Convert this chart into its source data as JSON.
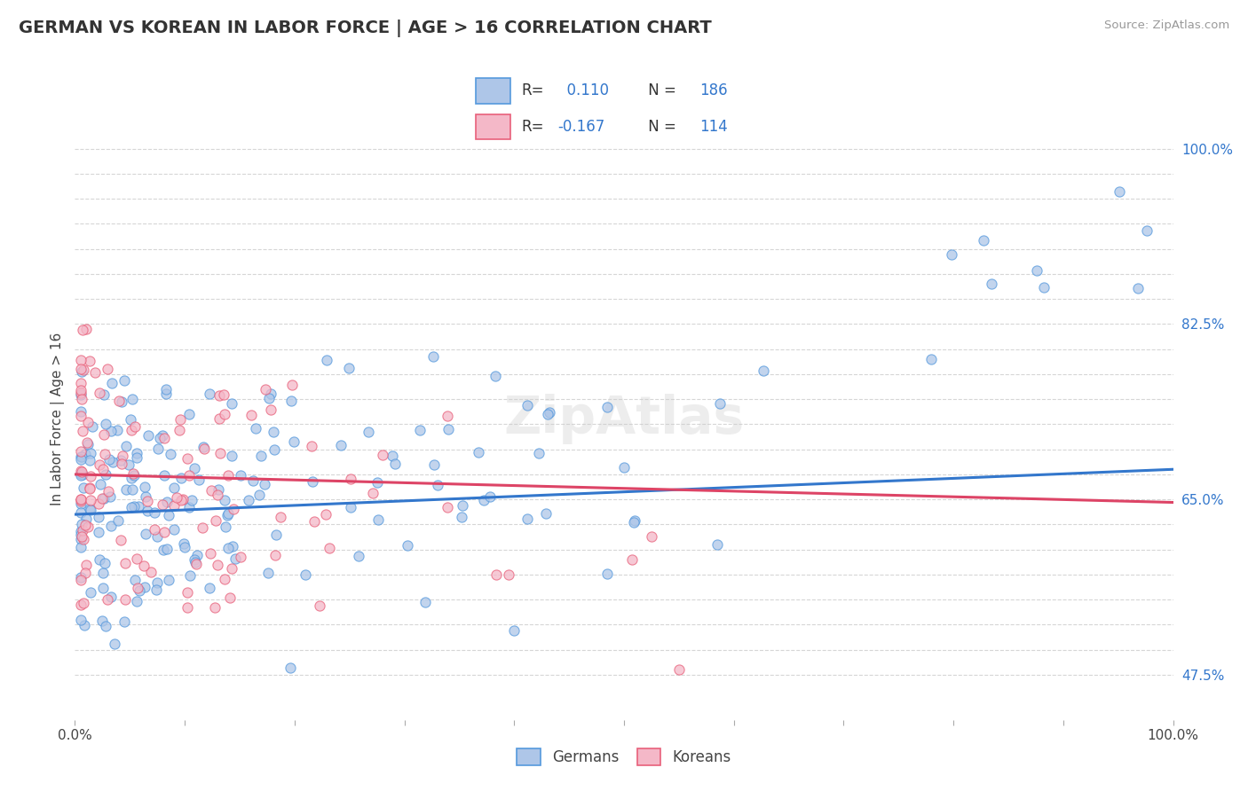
{
  "title": "GERMAN VS KOREAN IN LABOR FORCE | AGE > 16 CORRELATION CHART",
  "source": "Source: ZipAtlas.com",
  "ylabel": "In Labor Force | Age > 16",
  "xlim": [
    0.0,
    1.0
  ],
  "ylim": [
    0.43,
    1.03
  ],
  "ytick_positions": [
    0.475,
    0.65,
    0.825,
    1.0
  ],
  "ytick_labels": [
    "47.5%",
    "65.0%",
    "82.5%",
    "100.0%"
  ],
  "xtick_positions": [
    0.0,
    0.1,
    0.2,
    0.3,
    0.4,
    0.5,
    0.6,
    0.7,
    0.8,
    0.9,
    1.0
  ],
  "xtick_labels": [
    "0.0%",
    "",
    "",
    "",
    "",
    "",
    "",
    "",
    "",
    "",
    "100.0%"
  ],
  "german_fill_color": "#aec6e8",
  "korean_fill_color": "#f4b8c8",
  "german_edge_color": "#5599dd",
  "korean_edge_color": "#e8607a",
  "german_line_color": "#3377cc",
  "korean_line_color": "#dd4466",
  "background_color": "#ffffff",
  "grid_color": "#cccccc",
  "R_german": 0.11,
  "N_german": 186,
  "R_korean": -0.167,
  "N_korean": 114,
  "watermark": "ZipAtlas",
  "legend_box_color": "#f0f0f0",
  "legend_text_color": "#333333",
  "legend_val_color": "#3377cc"
}
